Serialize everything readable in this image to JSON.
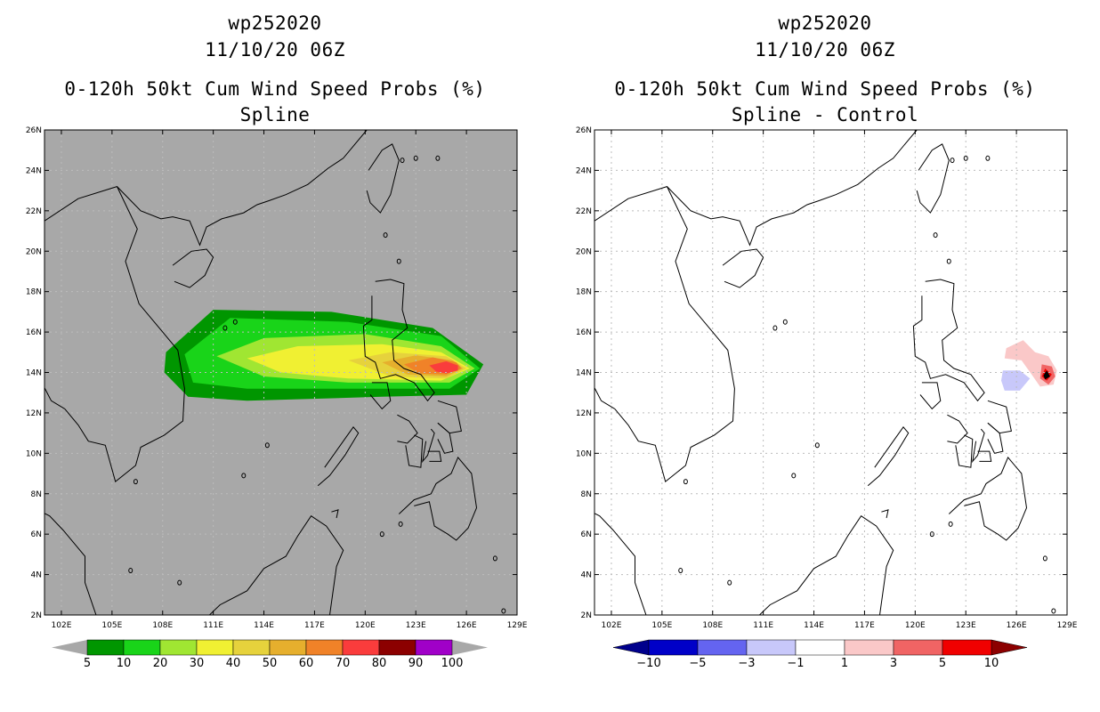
{
  "colors": {
    "land_outline": "#000000",
    "grid": "#bcbcbc",
    "left_bg": "#a8a8a8",
    "right_bg": "#ffffff"
  },
  "chart_data": [
    {
      "type": "heatmap",
      "title_lines": [
        "wp252020",
        "11/10/20 06Z",
        "0-120h 50kt Cum Wind Speed Probs (%)",
        "Spline"
      ],
      "lon_range": [
        101,
        129
      ],
      "lat_range": [
        2,
        26
      ],
      "xticks": [
        "102E",
        "105E",
        "108E",
        "111E",
        "114E",
        "117E",
        "120E",
        "123E",
        "126E",
        "129E"
      ],
      "yticks": [
        "2N",
        "4N",
        "6N",
        "8N",
        "10N",
        "12N",
        "14N",
        "16N",
        "18N",
        "20N",
        "22N",
        "24N",
        "26N"
      ],
      "colorbar": {
        "labels": [
          "5",
          "10",
          "20",
          "30",
          "40",
          "50",
          "60",
          "70",
          "80",
          "90",
          "100"
        ],
        "colors": [
          "#009600",
          "#19d419",
          "#a0e632",
          "#f0f032",
          "#e6d23c",
          "#e6af2d",
          "#f08228",
          "#fa3c3c",
          "#8c0000",
          "#a000c8"
        ]
      },
      "contours": [
        {
          "level": 5,
          "points": [
            [
              108.2,
              15.0
            ],
            [
              111.0,
              17.1
            ],
            [
              118.0,
              17.0
            ],
            [
              124.0,
              16.2
            ],
            [
              127.0,
              14.4
            ],
            [
              126.0,
              12.9
            ],
            [
              121.0,
              12.8
            ],
            [
              113.0,
              12.6
            ],
            [
              109.5,
              12.8
            ],
            [
              108.1,
              14.0
            ]
          ]
        },
        {
          "level": 10,
          "points": [
            [
              109.3,
              14.9
            ],
            [
              112.0,
              16.7
            ],
            [
              119.0,
              16.5
            ],
            [
              124.5,
              15.8
            ],
            [
              126.8,
              14.2
            ],
            [
              125.0,
              13.2
            ],
            [
              120.0,
              13.2
            ],
            [
              113.0,
              13.2
            ],
            [
              109.8,
              13.5
            ]
          ]
        },
        {
          "level": 20,
          "points": [
            [
              111.2,
              14.8
            ],
            [
              114.0,
              15.7
            ],
            [
              120.0,
              15.9
            ],
            [
              124.5,
              15.3
            ],
            [
              126.5,
              14.2
            ],
            [
              125.0,
              13.5
            ],
            [
              119.0,
              13.5
            ],
            [
              114.0,
              13.8
            ]
          ]
        },
        {
          "level": 30,
          "points": [
            [
              113.0,
              14.7
            ],
            [
              116.0,
              15.3
            ],
            [
              121.0,
              15.4
            ],
            [
              124.5,
              15.0
            ],
            [
              126.2,
              14.2
            ],
            [
              124.5,
              13.6
            ],
            [
              119.0,
              13.7
            ],
            [
              115.0,
              14.0
            ]
          ]
        },
        {
          "level": 40,
          "points": [
            [
              119.0,
              14.6
            ],
            [
              121.5,
              15.0
            ],
            [
              124.8,
              14.8
            ],
            [
              126.0,
              14.2
            ],
            [
              124.8,
              13.7
            ],
            [
              121.5,
              13.8
            ]
          ]
        },
        {
          "level": 50,
          "points": [
            [
              121.0,
              14.5
            ],
            [
              123.0,
              14.85
            ],
            [
              125.2,
              14.6
            ],
            [
              125.8,
              14.2
            ],
            [
              124.8,
              13.8
            ],
            [
              122.5,
              13.9
            ]
          ]
        },
        {
          "level": 60,
          "points": [
            [
              122.3,
              14.4
            ],
            [
              124.0,
              14.75
            ],
            [
              125.4,
              14.5
            ],
            [
              125.7,
              14.2
            ],
            [
              124.8,
              13.9
            ],
            [
              123.2,
              13.95
            ]
          ]
        },
        {
          "level": 70,
          "points": [
            [
              123.8,
              14.35
            ],
            [
              124.8,
              14.55
            ],
            [
              125.5,
              14.35
            ],
            [
              125.5,
              14.1
            ],
            [
              124.8,
              13.95
            ],
            [
              124.2,
              14.05
            ]
          ]
        }
      ]
    },
    {
      "type": "heatmap",
      "title_lines": [
        "wp252020",
        "11/10/20 06Z",
        "0-120h 50kt Cum Wind Speed Probs (%)",
        "Spline - Control"
      ],
      "lon_range": [
        101,
        129
      ],
      "lat_range": [
        2,
        26
      ],
      "xticks": [
        "102E",
        "105E",
        "108E",
        "111E",
        "114E",
        "117E",
        "120E",
        "123E",
        "126E",
        "129E"
      ],
      "yticks": [
        "2N",
        "4N",
        "6N",
        "8N",
        "10N",
        "12N",
        "14N",
        "16N",
        "18N",
        "20N",
        "22N",
        "24N",
        "26N"
      ],
      "colorbar": {
        "labels": [
          "-10",
          "-5",
          "-3",
          "-1",
          "1",
          "3",
          "5",
          "10"
        ],
        "colors": [
          "#0000c8",
          "#6464f0",
          "#c8c8fa",
          "#ffffff",
          "#fac8c8",
          "#f06464",
          "#f00000"
        ]
      },
      "contours": [
        {
          "level": 1,
          "points": [
            [
              125.4,
              15.2
            ],
            [
              126.4,
              15.6
            ],
            [
              127.1,
              15.0
            ],
            [
              127.9,
              14.8
            ],
            [
              128.4,
              14.1
            ],
            [
              128.2,
              13.4
            ],
            [
              127.4,
              13.3
            ],
            [
              126.9,
              13.9
            ],
            [
              126.3,
              14.6
            ],
            [
              125.3,
              14.7
            ]
          ]
        },
        {
          "level": 3,
          "points": [
            [
              127.5,
              14.4
            ],
            [
              128.1,
              14.3
            ],
            [
              128.3,
              13.8
            ],
            [
              127.9,
              13.4
            ],
            [
              127.4,
              13.7
            ]
          ]
        },
        {
          "level": 5,
          "points": [
            [
              127.7,
              14.2
            ],
            [
              128.1,
              13.9
            ],
            [
              127.8,
              13.6
            ],
            [
              127.5,
              13.8
            ]
          ]
        },
        {
          "level": 10,
          "points": [
            [
              127.8,
              14.1
            ],
            [
              128.0,
              13.8
            ],
            [
              127.7,
              13.65
            ],
            [
              127.6,
              13.85
            ]
          ]
        },
        {
          "level": -1,
          "points": [
            [
              125.2,
              14.1
            ],
            [
              126.2,
              14.1
            ],
            [
              126.8,
              13.7
            ],
            [
              126.2,
              13.1
            ],
            [
              125.3,
              13.1
            ],
            [
              125.1,
              13.6
            ]
          ]
        }
      ]
    }
  ]
}
